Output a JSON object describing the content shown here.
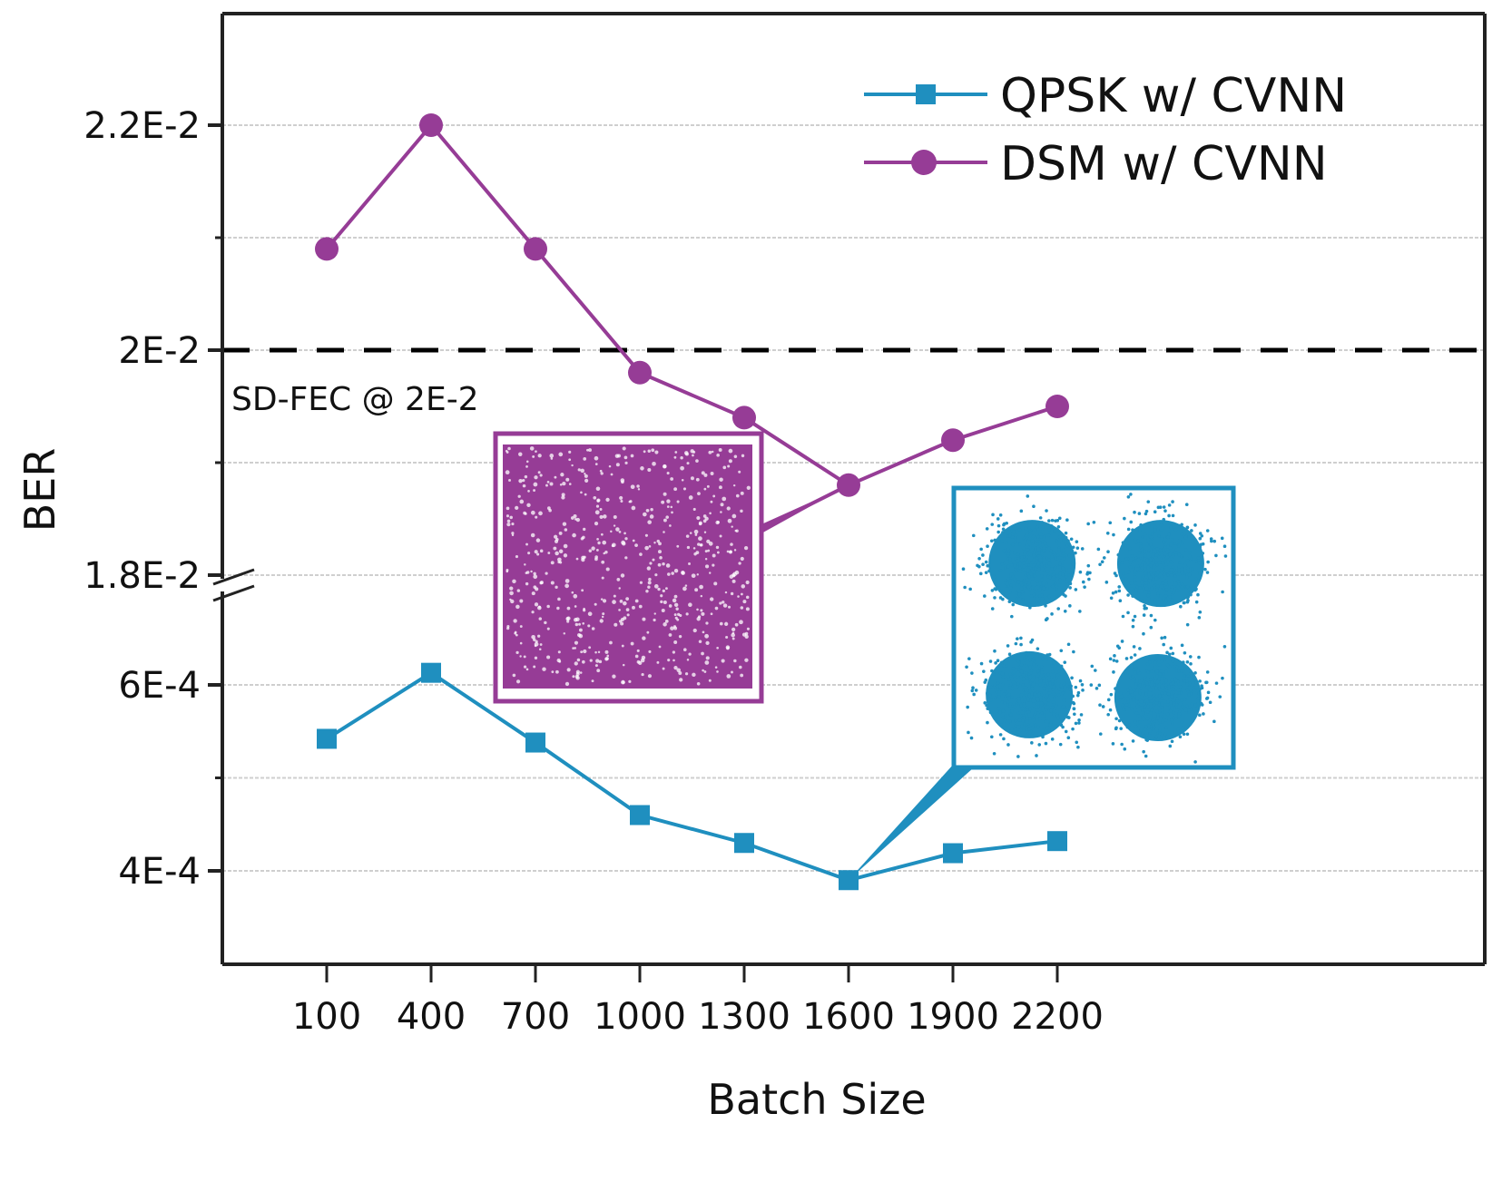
{
  "chart_data": {
    "type": "line",
    "title": "",
    "xlabel": "Batch Size",
    "ylabel": "BER",
    "x": [
      100,
      400,
      700,
      1000,
      1300,
      1600,
      1900,
      2200
    ],
    "x_tick_labels": [
      "100",
      "400",
      "700",
      "1000",
      "1300",
      "1600",
      "1900",
      "2200"
    ],
    "broken_y_axis": true,
    "y_segments": [
      {
        "name": "lower",
        "range": [
          0.0003,
          0.00069
        ],
        "ticks": [
          0.0004,
          0.0006
        ],
        "tick_labels": [
          "4E-4",
          "6E-4"
        ],
        "minor_grid": [
          0.0005
        ]
      },
      {
        "name": "upper",
        "range": [
          0.018,
          0.0238
        ],
        "ticks": [
          0.018,
          0.02,
          0.022
        ],
        "tick_labels": [
          "1.8E-2",
          "2E-2",
          "2.2E-2"
        ],
        "minor_grid": [
          0.019,
          0.021
        ]
      }
    ],
    "grid": true,
    "legend_position": "top-right",
    "series": [
      {
        "name": "QPSK w/ CVNN",
        "marker": "square",
        "color": "#1f8fbf",
        "y_segment": "lower",
        "values": [
          0.000542,
          0.000613,
          0.000538,
          0.00046,
          0.00043,
          0.00039,
          0.000419,
          0.000432
        ]
      },
      {
        "name": "DSM w/ CVNN",
        "marker": "circle",
        "color": "#963c96",
        "y_segment": "upper",
        "values": [
          0.0209,
          0.022,
          0.0209,
          0.0198,
          0.0194,
          0.0188,
          0.0192,
          0.0195
        ]
      }
    ],
    "threshold": {
      "value": 0.02,
      "label": "SD-FEC @ 2E-2",
      "style": "dashed",
      "color": "#000000"
    },
    "insets": [
      {
        "name": "DSM constellation",
        "description": "uniform dense scatter filling square",
        "color": "#963c96",
        "points_to_series": "DSM w/ CVNN",
        "points_to_x": 1600
      },
      {
        "name": "QPSK constellation",
        "description": "four Gaussian clusters",
        "color": "#1f8fbf",
        "points_to_series": "QPSK w/ CVNN",
        "points_to_x": 1600
      }
    ]
  }
}
